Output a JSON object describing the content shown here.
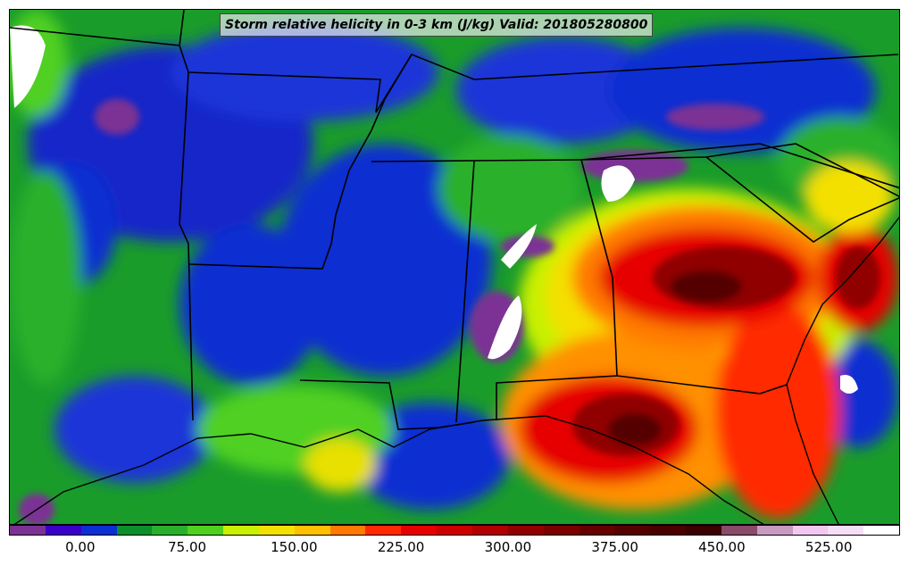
{
  "title": "Storm relative helicity in 0-3 km (J/kg) Valid: 201805280800",
  "map": {
    "region": "Southeastern United States",
    "field": "0-3 km storm relative helicity"
  },
  "colorbar": {
    "colors": [
      "#7b3294",
      "#3b00c8",
      "#0b2fd1",
      "#0a8f2a",
      "#29b02a",
      "#4fd020",
      "#c8f000",
      "#f4e000",
      "#ffc000",
      "#ff7a00",
      "#ff2a00",
      "#e60000",
      "#cc0000",
      "#b00000",
      "#900000",
      "#7a0000",
      "#660000",
      "#550000",
      "#4a0000",
      "#3a0000",
      "#8a4a6a",
      "#c89ac0",
      "#f0c8f0",
      "#f7def7",
      "#ffffff"
    ],
    "tick_labels": [
      "0.00",
      "75.00",
      "150.00",
      "225.00",
      "300.00",
      "375.00",
      "450.00",
      "525.00"
    ],
    "tick_values": [
      0,
      75,
      150,
      225,
      300,
      375,
      450,
      525
    ],
    "value_range": [
      -50,
      575
    ]
  }
}
